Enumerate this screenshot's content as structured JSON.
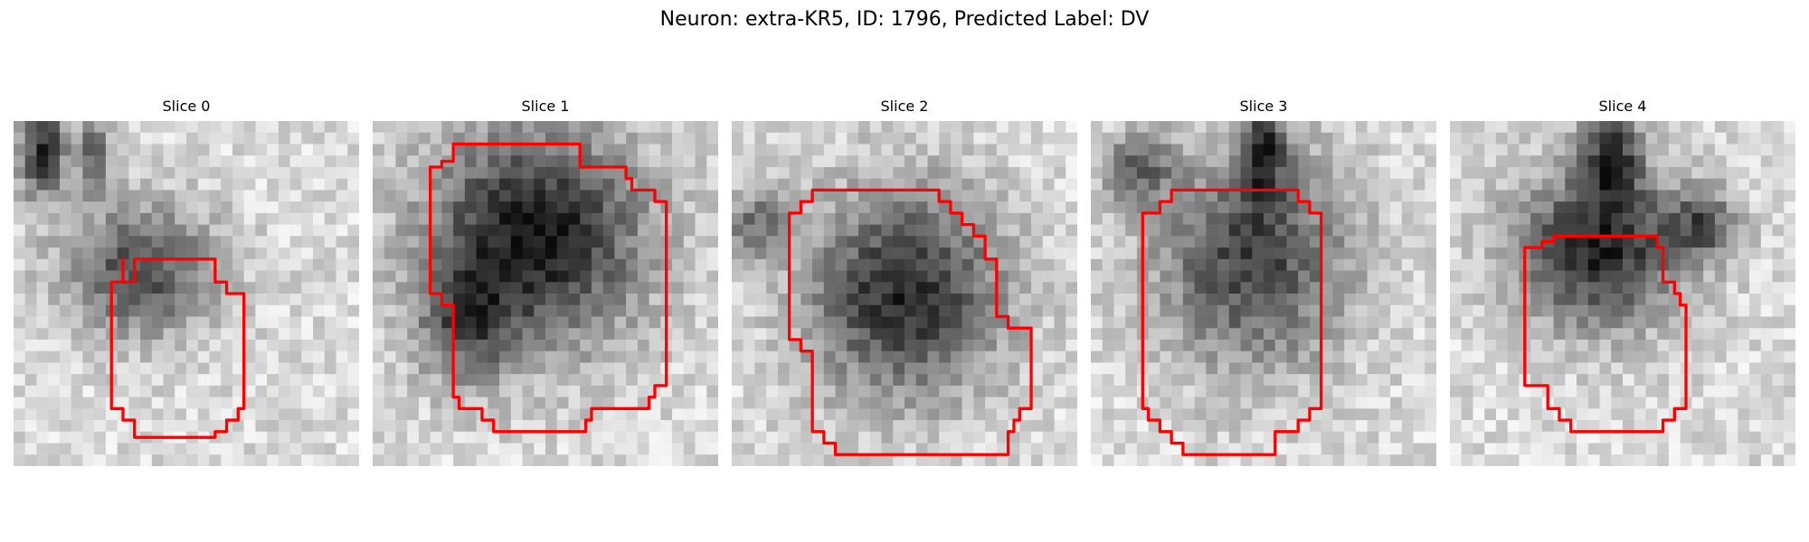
{
  "figure": {
    "title": "Neuron: extra-KR5, ID: 1796, Predicted Label: DV"
  },
  "colors": {
    "outline": "#ff0000"
  },
  "slices": [
    {
      "title": "Slice 0"
    },
    {
      "title": "Slice 1"
    },
    {
      "title": "Slice 2"
    },
    {
      "title": "Slice 3"
    },
    {
      "title": "Slice 4"
    }
  ]
}
